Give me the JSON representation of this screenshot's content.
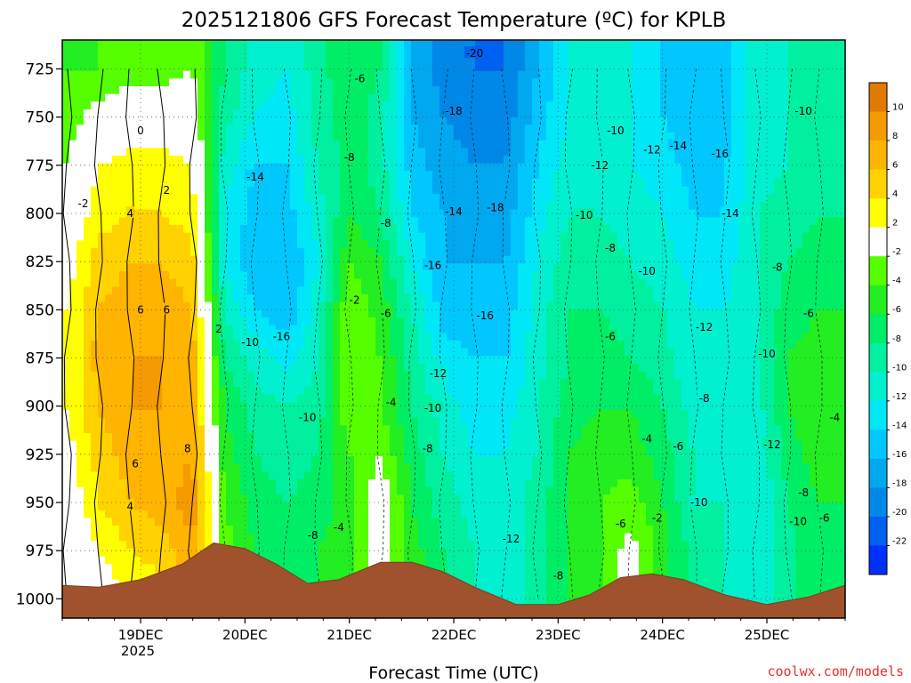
{
  "chart_data": {
    "type": "heatmap",
    "title": "2025121806 GFS Forecast Temperature (ºC) for KPLB",
    "xlabel": "Forecast Time (UTC)",
    "ylabel": "",
    "credit": "coolwx.com/models",
    "x_ticks": [
      "19DEC",
      "20DEC",
      "21DEC",
      "22DEC",
      "23DEC",
      "24DEC",
      "25DEC"
    ],
    "x_year_label": "2025",
    "y_ticks": [
      "725",
      "750",
      "775",
      "800",
      "825",
      "850",
      "875",
      "900",
      "925",
      "950",
      "975",
      "1000"
    ],
    "ylim": [
      710,
      1010
    ],
    "xlim_days": [
      18.25,
      25.75
    ],
    "colorbar": {
      "ticks": [
        "10",
        "8",
        "6",
        "4",
        "2",
        "-2",
        "-4",
        "-6",
        "-8",
        "-10",
        "-12",
        "-14",
        "-16",
        "-18",
        "-20",
        "-22"
      ],
      "bins": [
        {
          "range": "10 to 12",
          "color": "#e07a00"
        },
        {
          "range": "8 to 10",
          "color": "#f59a00"
        },
        {
          "range": "6 to 8",
          "color": "#ffb400"
        },
        {
          "range": "4 to 6",
          "color": "#ffd200"
        },
        {
          "range": "2 to 4",
          "color": "#ffff00"
        },
        {
          "range": "-2 to 2",
          "color": "#ffffff"
        },
        {
          "range": "-4 to -2",
          "color": "#55ff00"
        },
        {
          "range": "-6 to -4",
          "color": "#22ee22"
        },
        {
          "range": "-8 to -6",
          "color": "#00ee66"
        },
        {
          "range": "-10 to -8",
          "color": "#00f0a0"
        },
        {
          "range": "-12 to -10",
          "color": "#00f0d0"
        },
        {
          "range": "-14 to -12",
          "color": "#00e8f8"
        },
        {
          "range": "-16 to -14",
          "color": "#00c8ff"
        },
        {
          "range": "-18 to -16",
          "color": "#00a8f0"
        },
        {
          "range": "-20 to -18",
          "color": "#0088e8"
        },
        {
          "range": "-22 to -20",
          "color": "#0060f0"
        },
        {
          "range": "below -22",
          "color": "#0030ff"
        }
      ]
    },
    "time_columns": [
      {
        "day": 18.3,
        "temps": [
          -4,
          -3,
          -2,
          0,
          1,
          2,
          2,
          2,
          1,
          0,
          -1,
          -2
        ]
      },
      {
        "day": 18.6,
        "temps": [
          -4,
          -1,
          2,
          3,
          5,
          6,
          7,
          6,
          5,
          4,
          2,
          0
        ]
      },
      {
        "day": 18.9,
        "temps": [
          -3,
          0,
          3,
          4,
          6,
          7,
          8,
          8,
          7,
          6,
          4,
          2
        ]
      },
      {
        "day": 19.2,
        "temps": [
          -3,
          0,
          3,
          4,
          6,
          7,
          8,
          8,
          7,
          7,
          5,
          3
        ]
      },
      {
        "day": 19.5,
        "temps": [
          -2,
          0,
          2,
          3,
          5,
          6,
          7,
          7,
          8,
          9,
          8,
          6
        ]
      },
      {
        "day": 19.8,
        "temps": [
          -8,
          -9,
          -11,
          -12,
          -12,
          -10,
          -8,
          -6,
          -5,
          -4,
          -3,
          -3
        ]
      },
      {
        "day": 20.1,
        "temps": [
          -11,
          -12,
          -14,
          -15,
          -16,
          -14,
          -11,
          -9,
          -8,
          -7,
          -6,
          -6
        ]
      },
      {
        "day": 20.4,
        "temps": [
          -12,
          -13,
          -14,
          -15,
          -16,
          -16,
          -13,
          -10,
          -9,
          -8,
          -7,
          -7
        ]
      },
      {
        "day": 20.7,
        "temps": [
          -9,
          -9,
          -10,
          -11,
          -12,
          -11,
          -10,
          -9,
          -8,
          -7,
          -6,
          -6
        ]
      },
      {
        "day": 21.0,
        "temps": [
          -6,
          -7,
          -7,
          -6,
          -4,
          -2,
          -2,
          -2,
          -4,
          -5,
          -5,
          -5
        ]
      },
      {
        "day": 21.3,
        "temps": [
          -8,
          -9,
          -9,
          -8,
          -6,
          -5,
          -4,
          -4,
          -2,
          0,
          0,
          0
        ]
      },
      {
        "day": 21.6,
        "temps": [
          -16,
          -16,
          -15,
          -14,
          -12,
          -10,
          -9,
          -8,
          -7,
          -6,
          -5,
          -5
        ]
      },
      {
        "day": 21.9,
        "temps": [
          -19,
          -18,
          -17,
          -16,
          -16,
          -15,
          -13,
          -11,
          -10,
          -9,
          -8,
          -8
        ]
      },
      {
        "day": 22.2,
        "temps": [
          -20,
          -19,
          -18,
          -17,
          -16,
          -15,
          -14,
          -13,
          -12,
          -11,
          -10,
          -10
        ]
      },
      {
        "day": 22.5,
        "temps": [
          -20,
          -19,
          -18,
          -17,
          -16,
          -15,
          -14,
          -13,
          -12,
          -11,
          -11,
          -11
        ]
      },
      {
        "day": 22.8,
        "temps": [
          -16,
          -15,
          -14,
          -13,
          -12,
          -11,
          -11,
          -10,
          -10,
          -9,
          -9,
          -9
        ]
      },
      {
        "day": 23.1,
        "temps": [
          -12,
          -12,
          -11,
          -10,
          -9,
          -8,
          -8,
          -7,
          -6,
          -6,
          -6,
          -6
        ]
      },
      {
        "day": 23.4,
        "temps": [
          -11,
          -11,
          -11,
          -10,
          -9,
          -8,
          -7,
          -6,
          -5,
          -4,
          -4,
          -4
        ]
      },
      {
        "day": 23.7,
        "temps": [
          -12,
          -12,
          -12,
          -11,
          -10,
          -9,
          -8,
          -6,
          -5,
          -3,
          -1,
          -1
        ]
      },
      {
        "day": 24.0,
        "temps": [
          -14,
          -14,
          -13,
          -12,
          -11,
          -10,
          -9,
          -8,
          -7,
          -6,
          -5,
          -5
        ]
      },
      {
        "day": 24.3,
        "temps": [
          -16,
          -15,
          -15,
          -14,
          -13,
          -12,
          -12,
          -11,
          -10,
          -10,
          -9,
          -9
        ]
      },
      {
        "day": 24.6,
        "temps": [
          -15,
          -15,
          -14,
          -14,
          -13,
          -12,
          -11,
          -11,
          -11,
          -10,
          -10,
          -10
        ]
      },
      {
        "day": 24.9,
        "temps": [
          -10,
          -11,
          -11,
          -10,
          -10,
          -10,
          -10,
          -11,
          -12,
          -12,
          -11,
          -11
        ]
      },
      {
        "day": 25.2,
        "temps": [
          -10,
          -10,
          -10,
          -9,
          -8,
          -7,
          -6,
          -6,
          -7,
          -8,
          -9,
          -9
        ]
      },
      {
        "day": 25.5,
        "temps": [
          -9,
          -9,
          -8,
          -8,
          -7,
          -6,
          -5,
          -4,
          -5,
          -6,
          -6,
          -6
        ]
      }
    ],
    "surface_pressure": [
      {
        "day": 18.25,
        "p": 993
      },
      {
        "day": 18.6,
        "p": 994
      },
      {
        "day": 19.0,
        "p": 990
      },
      {
        "day": 19.4,
        "p": 982
      },
      {
        "day": 19.7,
        "p": 971
      },
      {
        "day": 20.0,
        "p": 974
      },
      {
        "day": 20.3,
        "p": 982
      },
      {
        "day": 20.6,
        "p": 992
      },
      {
        "day": 20.9,
        "p": 990
      },
      {
        "day": 21.3,
        "p": 981
      },
      {
        "day": 21.6,
        "p": 981
      },
      {
        "day": 21.9,
        "p": 986
      },
      {
        "day": 22.2,
        "p": 994
      },
      {
        "day": 22.6,
        "p": 1003
      },
      {
        "day": 23.0,
        "p": 1003
      },
      {
        "day": 23.3,
        "p": 998
      },
      {
        "day": 23.6,
        "p": 989
      },
      {
        "day": 23.9,
        "p": 987
      },
      {
        "day": 24.2,
        "p": 990
      },
      {
        "day": 24.6,
        "p": 998
      },
      {
        "day": 25.0,
        "p": 1003
      },
      {
        "day": 25.4,
        "p": 999
      },
      {
        "day": 25.75,
        "p": 993
      }
    ],
    "contour_labels": [
      {
        "t": "0",
        "day": 19.0,
        "p": 757
      },
      {
        "t": "2",
        "day": 19.25,
        "p": 788
      },
      {
        "t": "4",
        "day": 18.9,
        "p": 800
      },
      {
        "t": "6",
        "day": 19.0,
        "p": 850
      },
      {
        "t": "6",
        "day": 19.25,
        "p": 850
      },
      {
        "t": "6",
        "day": 18.95,
        "p": 930
      },
      {
        "t": "8",
        "day": 19.45,
        "p": 922
      },
      {
        "t": "4",
        "day": 18.9,
        "p": 952
      },
      {
        "t": "2",
        "day": 19.75,
        "p": 860
      },
      {
        "t": "-2",
        "day": 18.45,
        "p": 795
      },
      {
        "t": "-14",
        "day": 20.1,
        "p": 781
      },
      {
        "t": "-10",
        "day": 20.05,
        "p": 867
      },
      {
        "t": "-16",
        "day": 20.35,
        "p": 864
      },
      {
        "t": "-10",
        "day": 20.6,
        "p": 906
      },
      {
        "t": "-6",
        "day": 21.1,
        "p": 730
      },
      {
        "t": "-8",
        "day": 21.0,
        "p": 771
      },
      {
        "t": "-8",
        "day": 21.35,
        "p": 805
      },
      {
        "t": "-2",
        "day": 21.05,
        "p": 845
      },
      {
        "t": "-6",
        "day": 21.35,
        "p": 852
      },
      {
        "t": "-4",
        "day": 21.4,
        "p": 898
      },
      {
        "t": "-8",
        "day": 20.65,
        "p": 967
      },
      {
        "t": "-4",
        "day": 20.9,
        "p": 963
      },
      {
        "t": "-20",
        "day": 22.2,
        "p": 717
      },
      {
        "t": "-18",
        "day": 22.0,
        "p": 747
      },
      {
        "t": "-14",
        "day": 22.0,
        "p": 799
      },
      {
        "t": "-18",
        "day": 22.4,
        "p": 797
      },
      {
        "t": "-16",
        "day": 21.8,
        "p": 827
      },
      {
        "t": "-16",
        "day": 22.3,
        "p": 853
      },
      {
        "t": "-12",
        "day": 21.85,
        "p": 883
      },
      {
        "t": "-10",
        "day": 21.8,
        "p": 901
      },
      {
        "t": "-8",
        "day": 21.75,
        "p": 922
      },
      {
        "t": "-12",
        "day": 22.55,
        "p": 969
      },
      {
        "t": "-8",
        "day": 23.0,
        "p": 988
      },
      {
        "t": "-10",
        "day": 23.55,
        "p": 757
      },
      {
        "t": "-12",
        "day": 23.4,
        "p": 775
      },
      {
        "t": "-10",
        "day": 23.25,
        "p": 801
      },
      {
        "t": "-8",
        "day": 23.5,
        "p": 818
      },
      {
        "t": "-10",
        "day": 23.85,
        "p": 830
      },
      {
        "t": "-6",
        "day": 23.5,
        "p": 864
      },
      {
        "t": "-8",
        "day": 24.4,
        "p": 896
      },
      {
        "t": "-4",
        "day": 23.85,
        "p": 917
      },
      {
        "t": "-6",
        "day": 24.15,
        "p": 921
      },
      {
        "t": "-6",
        "day": 23.6,
        "p": 961
      },
      {
        "t": "-2",
        "day": 23.95,
        "p": 958
      },
      {
        "t": "-10",
        "day": 24.35,
        "p": 950
      },
      {
        "t": "-12",
        "day": 23.9,
        "p": 767
      },
      {
        "t": "-14",
        "day": 24.15,
        "p": 765
      },
      {
        "t": "-16",
        "day": 24.55,
        "p": 769
      },
      {
        "t": "-14",
        "day": 24.65,
        "p": 800
      },
      {
        "t": "-12",
        "day": 24.4,
        "p": 859
      },
      {
        "t": "-10",
        "day": 25.0,
        "p": 873
      },
      {
        "t": "-8",
        "day": 25.1,
        "p": 828
      },
      {
        "t": "-12",
        "day": 25.05,
        "p": 920
      },
      {
        "t": "-10",
        "day": 25.35,
        "p": 747
      },
      {
        "t": "-6",
        "day": 25.4,
        "p": 852
      },
      {
        "t": "-4",
        "day": 25.65,
        "p": 906
      },
      {
        "t": "-8",
        "day": 25.35,
        "p": 945
      },
      {
        "t": "-10",
        "day": 25.3,
        "p": 960
      },
      {
        "t": "-6",
        "day": 25.55,
        "p": 958
      }
    ]
  }
}
